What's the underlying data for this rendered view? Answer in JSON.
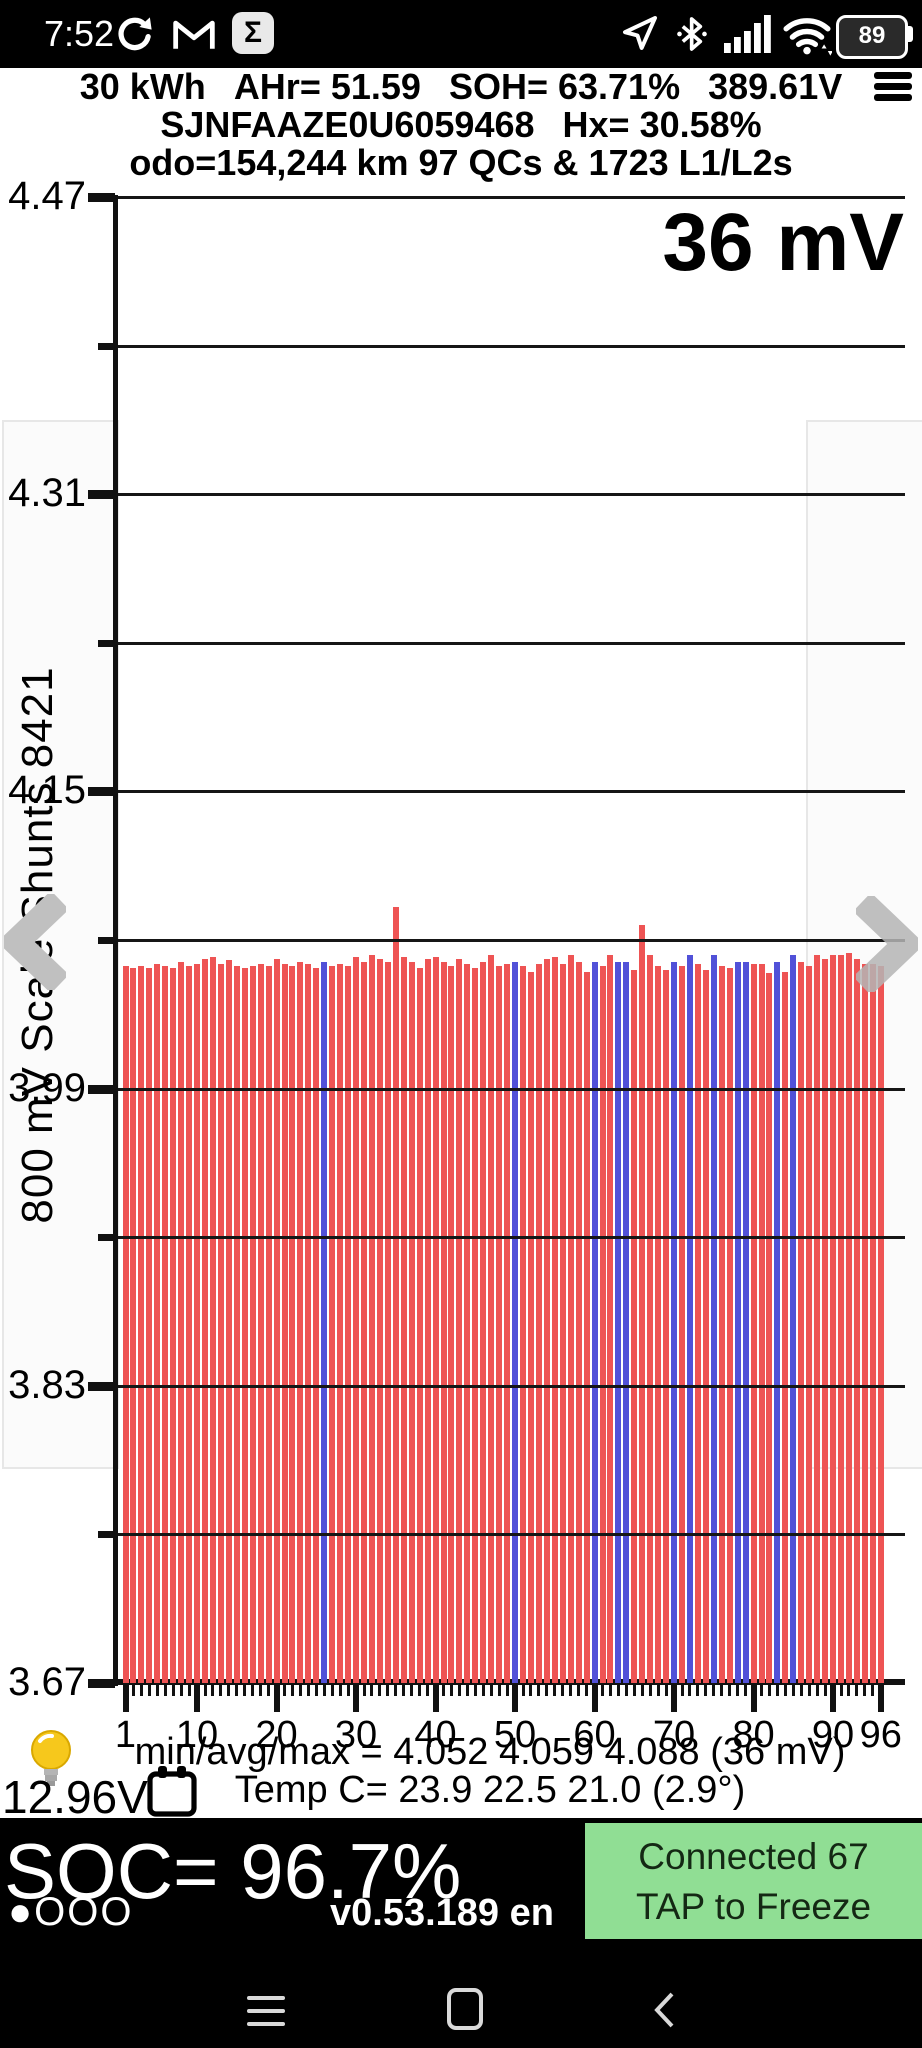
{
  "colors": {
    "bar_red": "#ee5454",
    "bar_blue": "#5151d8",
    "connected_green": "#90de94",
    "status_bar_bg": "#000000",
    "chevron_gray": "#bdbdbd"
  },
  "status_bar": {
    "time": "7:52",
    "sigma_glyph": "Σ",
    "battery_percent": "89",
    "notification_icons": [
      "sync-icon",
      "gmail-icon",
      "sigma-icon"
    ],
    "status_icons": [
      "location-icon",
      "bluetooth-icon",
      "signal-icon",
      "wifi-icon",
      "battery-icon"
    ]
  },
  "header": {
    "pack_size": "30 kWh",
    "ahr": "AHr= 51.59",
    "soh": "SOH= 63.71%",
    "voltage": "389.61V",
    "vin": "SJNFAAZE0U6059468",
    "hx": "Hx= 30.58%",
    "odometer_line": "odo=154,244 km 97 QCs & 1723 L1/L2s"
  },
  "chart_data": {
    "type": "bar",
    "title": "36 mV",
    "ylabel": "800 mV Scale   Shunts 8421",
    "xlabel": "",
    "ylim": [
      3.67,
      4.47
    ],
    "grid_step": 0.08,
    "yticks": [
      4.47,
      4.31,
      4.15,
      3.99,
      3.83,
      3.67
    ],
    "minor_gridlines": [
      4.39,
      4.23,
      4.07,
      3.91,
      3.75
    ],
    "xticks": [
      1,
      10,
      20,
      30,
      40,
      50,
      60,
      70,
      80,
      90,
      96
    ],
    "x_range": [
      1,
      96
    ],
    "values": [
      4.056,
      4.055,
      4.056,
      4.055,
      4.057,
      4.056,
      4.055,
      4.058,
      4.056,
      4.057,
      4.06,
      4.061,
      4.057,
      4.059,
      4.056,
      4.055,
      4.056,
      4.057,
      4.056,
      4.06,
      4.057,
      4.056,
      4.058,
      4.057,
      4.055,
      4.058,
      4.056,
      4.057,
      4.056,
      4.061,
      4.058,
      4.062,
      4.06,
      4.058,
      4.088,
      4.061,
      4.058,
      4.055,
      4.06,
      4.061,
      4.058,
      4.056,
      4.06,
      4.057,
      4.055,
      4.058,
      4.062,
      4.056,
      4.057,
      4.058,
      4.056,
      4.053,
      4.057,
      4.06,
      4.061,
      4.057,
      4.062,
      4.058,
      4.053,
      4.058,
      4.056,
      4.062,
      4.058,
      4.058,
      4.054,
      4.078,
      4.062,
      4.056,
      4.054,
      4.058,
      4.056,
      4.062,
      4.057,
      4.054,
      4.062,
      4.056,
      4.055,
      4.058,
      4.058,
      4.057,
      4.057,
      4.052,
      4.058,
      4.053,
      4.062,
      4.058,
      4.056,
      4.062,
      4.06,
      4.062,
      4.062,
      4.063,
      4.06,
      4.057,
      4.057,
      4.056
    ],
    "shunt_cells": [
      26,
      50,
      60,
      63,
      64,
      70,
      72,
      75,
      78,
      79,
      83,
      85
    ],
    "stats": {
      "min": 4.052,
      "avg": 4.059,
      "max": 4.088,
      "delta_mv": 36
    },
    "temps_c": {
      "values": [
        23.9,
        22.5,
        21.0
      ],
      "delta": "2.9°"
    },
    "legend": "none",
    "grid": true
  },
  "footer": {
    "stats_line": "min/avg/max = 4.052 4.059 4.088  (36 mV)",
    "temp_line": "Temp C= 23.9  22.5  21.0  (2.9°)",
    "aux_battery_voltage": "12.96V"
  },
  "bottom_bar": {
    "soc": "SOC= 96.7%",
    "pager_indicator": "●OOO",
    "version": "v0.53.189 en",
    "connection_line1": "Connected 67",
    "connection_line2": "TAP to Freeze"
  }
}
